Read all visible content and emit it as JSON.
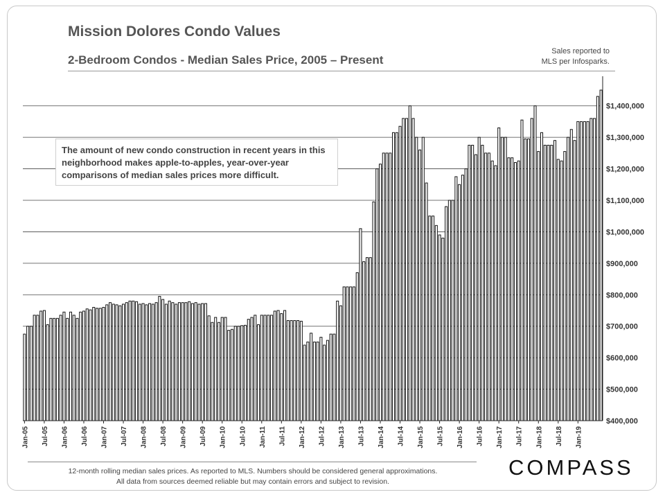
{
  "title": "Mission Dolores Condo Values",
  "subtitle": "2-Bedroom Condos  - Median Sales Price, 2005 – Present",
  "source_note_line1": "Sales reported to",
  "source_note_line2": "MLS per Infosparks.",
  "callout": "The amount of new condo construction in recent years in this neighborhood makes apple-to-apples, year-over-year comparisons of median sales prices more difficult.",
  "footnote_line1": "12-month rolling median sales prices. As reported to MLS. Numbers should be considered general approximations.",
  "footnote_line2": "All data from sources deemed reliable but may contain errors and subject to revision.",
  "logo": "COMPASS",
  "colors": {
    "bar_fill": "#ffffff",
    "bar_stroke": "#111111",
    "grid": "#444444"
  },
  "chart_data": {
    "type": "bar",
    "title": "Mission Dolores Condo Values",
    "subtitle": "2-Bedroom Condos  - Median Sales Price, 2005 – Present",
    "xlabel": "",
    "ylabel": "",
    "ylim": [
      400000,
      1450000
    ],
    "y_ticks": [
      400000,
      500000,
      600000,
      700000,
      800000,
      900000,
      1000000,
      1100000,
      1200000,
      1300000,
      1400000
    ],
    "y_tick_labels": [
      "$400,000",
      "$500,000",
      "$600,000",
      "$700,000",
      "$800,000",
      "$900,000",
      "$1,000,000",
      "$1,100,000",
      "$1,200,000",
      "$1,300,000",
      "$1,400,000"
    ],
    "y_axis_side": "right",
    "grid": true,
    "start": "Jan-05",
    "x_tick_labels": [
      "Jan-05",
      "Jul-05",
      "Jan-06",
      "Jul-06",
      "Jan-07",
      "Jul-07",
      "Jan-08",
      "Jul-08",
      "Jan-09",
      "Jul-09",
      "Jan-10",
      "Jul-10",
      "Jan-11",
      "Jul-11",
      "Jan-12",
      "Jul-12",
      "Jan-13",
      "Jul-13",
      "Jan-14",
      "Jul-14",
      "Jan-15",
      "Jul-15",
      "Jan-16",
      "Jul-16",
      "Jan-17",
      "Jul-17",
      "Jan-18",
      "Jul-18",
      "Jan-19"
    ],
    "values": [
      675000,
      700000,
      700000,
      735000,
      735000,
      748000,
      750000,
      705000,
      725000,
      725000,
      725000,
      735000,
      745000,
      725000,
      745000,
      735000,
      725000,
      745000,
      748000,
      755000,
      752000,
      760000,
      757000,
      757000,
      760000,
      768000,
      775000,
      770000,
      768000,
      765000,
      770000,
      775000,
      780000,
      780000,
      778000,
      770000,
      772000,
      768000,
      772000,
      770000,
      775000,
      795000,
      785000,
      770000,
      780000,
      775000,
      770000,
      775000,
      775000,
      775000,
      778000,
      772000,
      775000,
      770000,
      772000,
      772000,
      733000,
      712000,
      728000,
      712000,
      728000,
      728000,
      687000,
      690000,
      700000,
      700000,
      702000,
      703000,
      722000,
      728000,
      735000,
      705000,
      735000,
      735000,
      735000,
      735000,
      748000,
      750000,
      740000,
      750000,
      718000,
      718000,
      718000,
      718000,
      716000,
      640000,
      650000,
      678000,
      650000,
      650000,
      665000,
      640000,
      655000,
      675000,
      675000,
      780000,
      765000,
      825000,
      825000,
      825000,
      825000,
      870000,
      1010000,
      905000,
      918000,
      918000,
      1095000,
      1200000,
      1215000,
      1250000,
      1250000,
      1250000,
      1315000,
      1315000,
      1335000,
      1360000,
      1360000,
      1400000,
      1360000,
      1300000,
      1260000,
      1300000,
      1155000,
      1050000,
      1050000,
      1020000,
      990000,
      980000,
      1080000,
      1100000,
      1100000,
      1175000,
      1150000,
      1180000,
      1200000,
      1275000,
      1275000,
      1245000,
      1300000,
      1275000,
      1250000,
      1250000,
      1225000,
      1210000,
      1330000,
      1300000,
      1300000,
      1235000,
      1235000,
      1220000,
      1225000,
      1355000,
      1295000,
      1295000,
      1360000,
      1400000,
      1255000,
      1315000,
      1275000,
      1275000,
      1275000,
      1290000,
      1230000,
      1225000,
      1255000,
      1300000,
      1325000,
      1290000,
      1350000,
      1350000,
      1350000,
      1350000,
      1360000,
      1360000,
      1430000,
      1450000
    ]
  }
}
